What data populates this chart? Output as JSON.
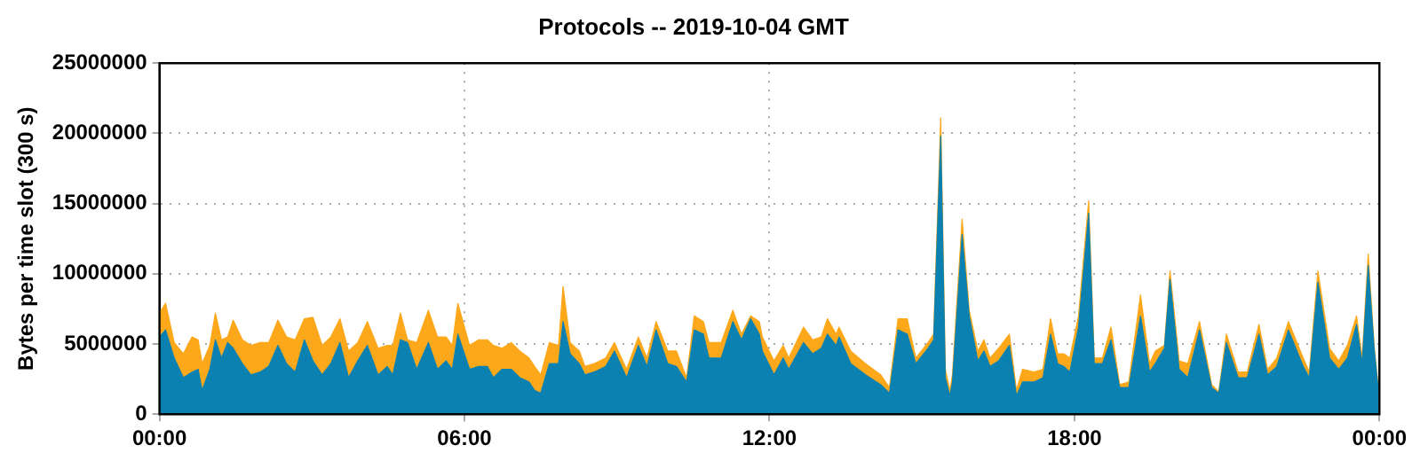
{
  "chart_data": {
    "type": "area",
    "title": "Protocols -- 2019-10-04 GMT",
    "ylabel": "Bytes per time slot (300 s)",
    "stacked": true,
    "grid": true,
    "x": [
      0,
      0.12,
      0.29,
      0.47,
      0.64,
      0.76,
      0.84,
      0.99,
      1.1,
      1.22,
      1.34,
      1.45,
      1.63,
      1.8,
      1.98,
      2.15,
      2.33,
      2.5,
      2.67,
      2.85,
      3.02,
      3.2,
      3.37,
      3.55,
      3.72,
      3.9,
      4.09,
      4.3,
      4.48,
      4.59,
      4.74,
      4.88,
      5.06,
      5.29,
      5.47,
      5.64,
      5.76,
      5.87,
      6.1,
      6.28,
      6.45,
      6.57,
      6.74,
      6.92,
      7.09,
      7.27,
      7.38,
      7.5,
      7.67,
      7.85,
      7.94,
      8.08,
      8.26,
      8.37,
      8.55,
      8.78,
      8.95,
      9.19,
      9.42,
      9.59,
      9.77,
      10.0,
      10.17,
      10.37,
      10.52,
      10.7,
      10.81,
      11.05,
      11.28,
      11.45,
      11.63,
      11.8,
      11.86,
      12.09,
      12.27,
      12.38,
      12.67,
      12.85,
      13.02,
      13.14,
      13.31,
      13.37,
      13.6,
      13.89,
      14.19,
      14.36,
      14.53,
      14.71,
      14.88,
      15.12,
      15.23,
      15.37,
      15.46,
      15.55,
      15.6,
      15.79,
      15.93,
      16.1,
      16.22,
      16.34,
      16.51,
      16.72,
      16.86,
      16.98,
      17.21,
      17.38,
      17.53,
      17.67,
      17.79,
      17.91,
      18.08,
      18.28,
      18.39,
      18.55,
      18.72,
      18.89,
      19.07,
      19.3,
      19.48,
      19.59,
      19.77,
      19.88,
      20.06,
      20.23,
      20.46,
      20.7,
      20.84,
      20.99,
      21.22,
      21.4,
      21.63,
      21.8,
      21.98,
      22.21,
      22.5,
      22.62,
      22.79,
      23.02,
      23.2,
      23.37,
      23.55,
      23.66,
      23.78,
      23.9,
      23.98
    ],
    "series": [
      {
        "color": "#0a81b0",
        "values": [
          5500000,
          6000000,
          4000000,
          2600000,
          3000000,
          3200000,
          1700000,
          3200000,
          5300000,
          4000000,
          5100000,
          4700000,
          3600000,
          2800000,
          3000000,
          3400000,
          4900000,
          3600000,
          3000000,
          5300000,
          3800000,
          2800000,
          3600000,
          5100000,
          2600000,
          3800000,
          4900000,
          2800000,
          3400000,
          2800000,
          5300000,
          5100000,
          3200000,
          5100000,
          3200000,
          3800000,
          3200000,
          5700000,
          3200000,
          3400000,
          3400000,
          2600000,
          3200000,
          3200000,
          2600000,
          2300000,
          1700000,
          1500000,
          3600000,
          3600000,
          6600000,
          4300000,
          3600000,
          2800000,
          3000000,
          3400000,
          4500000,
          2600000,
          4900000,
          3400000,
          6000000,
          3600000,
          3400000,
          2300000,
          6000000,
          5700000,
          4000000,
          4000000,
          6600000,
          5300000,
          6800000,
          5700000,
          4500000,
          2800000,
          4000000,
          3200000,
          5100000,
          4300000,
          4700000,
          5700000,
          4900000,
          5500000,
          3600000,
          2800000,
          2100000,
          1500000,
          6000000,
          5700000,
          3600000,
          4700000,
          5300000,
          19800000,
          2600000,
          1300000,
          2300000,
          12800000,
          7000000,
          3800000,
          4500000,
          3400000,
          3800000,
          4900000,
          1300000,
          2300000,
          2300000,
          2600000,
          5700000,
          3600000,
          3400000,
          3000000,
          6200000,
          14300000,
          3600000,
          3600000,
          5300000,
          1900000,
          1900000,
          7000000,
          3000000,
          3600000,
          4700000,
          9600000,
          3200000,
          2600000,
          6000000,
          1900000,
          1500000,
          5100000,
          2600000,
          2600000,
          5700000,
          2800000,
          3400000,
          6000000,
          3400000,
          2600000,
          9400000,
          4000000,
          3200000,
          4000000,
          6400000,
          3600000,
          10600000,
          4500000,
          1700000
        ]
      },
      {
        "color": "#fca81a",
        "values": [
          1700000,
          1900000,
          1100000,
          1700000,
          2500000,
          2100000,
          1900000,
          1700000,
          1900000,
          1300000,
          400000,
          2000000,
          1700000,
          2100000,
          2100000,
          1700000,
          1800000,
          1900000,
          2300000,
          1500000,
          3100000,
          2100000,
          1900000,
          1700000,
          1900000,
          1300000,
          1700000,
          1900000,
          1500000,
          2100000,
          1900000,
          200000,
          1900000,
          2300000,
          2300000,
          1700000,
          1700000,
          2200000,
          1700000,
          1900000,
          1900000,
          2300000,
          1500000,
          1900000,
          1900000,
          1700000,
          1700000,
          1300000,
          1500000,
          1300000,
          2500000,
          800000,
          900000,
          600000,
          600000,
          600000,
          600000,
          600000,
          600000,
          600000,
          600000,
          900000,
          1100000,
          300000,
          1000000,
          900000,
          1100000,
          1100000,
          800000,
          400000,
          200000,
          900000,
          1000000,
          1000000,
          900000,
          800000,
          1100000,
          1000000,
          800000,
          1100000,
          800000,
          700000,
          900000,
          800000,
          700000,
          400000,
          800000,
          1100000,
          400000,
          400000,
          400000,
          1300000,
          600000,
          400000,
          500000,
          1100000,
          400000,
          700000,
          800000,
          600000,
          900000,
          800000,
          400000,
          900000,
          700000,
          600000,
          1100000,
          700000,
          900000,
          1000000,
          800000,
          900000,
          400000,
          400000,
          900000,
          200000,
          400000,
          1500000,
          600000,
          900000,
          200000,
          600000,
          600000,
          1000000,
          600000,
          200000,
          100000,
          600000,
          400000,
          400000,
          700000,
          400000,
          600000,
          600000,
          600000,
          400000,
          800000,
          700000,
          600000,
          900000,
          600000,
          400000,
          800000,
          200000,
          200000
        ]
      }
    ],
    "xlim": [
      0,
      24
    ],
    "xticks": [
      {
        "value": 0,
        "label": "00:00"
      },
      {
        "value": 6,
        "label": "06:00"
      },
      {
        "value": 12,
        "label": "12:00"
      },
      {
        "value": 18,
        "label": "18:00"
      },
      {
        "value": 24,
        "label": "00:00"
      }
    ],
    "ylim": [
      0,
      25000000
    ],
    "yticks": [
      0,
      5000000,
      10000000,
      15000000,
      20000000,
      25000000
    ]
  }
}
